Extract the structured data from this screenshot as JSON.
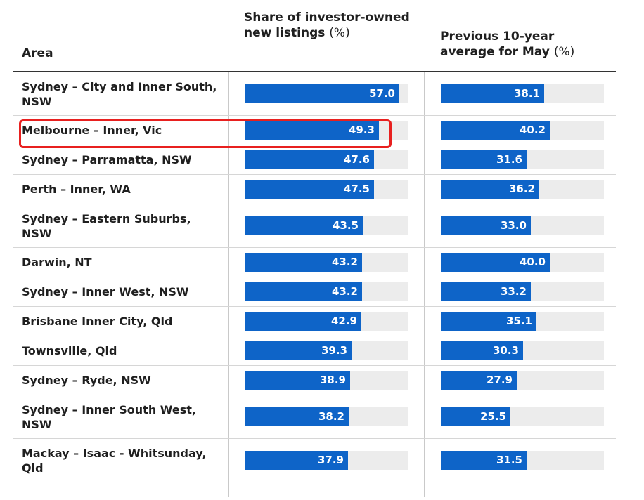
{
  "header": {
    "area": "Area",
    "share": "Share of investor-owned new listings",
    "share_unit": "(%)",
    "avg": "Previous 10-year average for May",
    "avg_unit": "(%)"
  },
  "chart_data": {
    "type": "table",
    "columns": [
      "Area",
      "Share of investor-owned new listings (%)",
      "Previous 10-year average for May (%)"
    ],
    "xlim": [
      0,
      60
    ],
    "rows": [
      {
        "area": "Sydney – City and Inner South, NSW",
        "share": "57.0",
        "avg": "38.1"
      },
      {
        "area": "Melbourne – Inner, Vic",
        "share": "49.3",
        "avg": "40.2"
      },
      {
        "area": "Sydney – Parramatta, NSW",
        "share": "47.6",
        "avg": "31.6"
      },
      {
        "area": "Perth – Inner, WA",
        "share": "47.5",
        "avg": "36.2"
      },
      {
        "area": "Sydney – Eastern Suburbs, NSW",
        "share": "43.5",
        "avg": "33.0"
      },
      {
        "area": "Darwin, NT",
        "share": "43.2",
        "avg": "40.0"
      },
      {
        "area": "Sydney – Inner West, NSW",
        "share": "43.2",
        "avg": "33.2"
      },
      {
        "area": "Brisbane Inner City, Qld",
        "share": "42.9",
        "avg": "35.1"
      },
      {
        "area": "Townsville, Qld",
        "share": "39.3",
        "avg": "30.3"
      },
      {
        "area": "Sydney – Ryde, NSW",
        "share": "38.9",
        "avg": "27.9"
      },
      {
        "area": "Sydney – Inner South West, NSW",
        "share": "38.2",
        "avg": "25.5"
      },
      {
        "area": "Mackay – Isaac - Whitsunday, Qld",
        "share": "37.9",
        "avg": "31.5"
      }
    ],
    "highlighted_row": "Melbourne – Inner, Vic",
    "bar_color": "#0e64c8",
    "track_color": "#ececec",
    "highlight_color": "#e8201f"
  }
}
